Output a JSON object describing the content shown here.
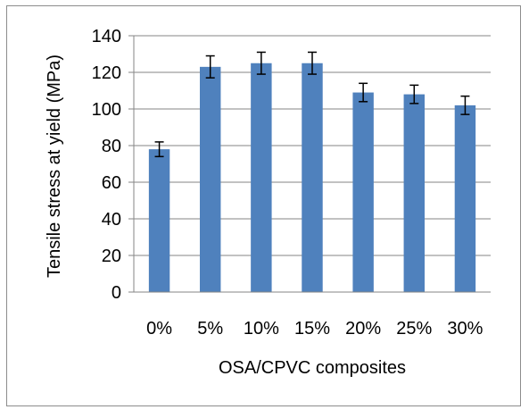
{
  "chart_data": {
    "type": "bar",
    "categories": [
      "0%",
      "5%",
      "10%",
      "15%",
      "20%",
      "25%",
      "30%"
    ],
    "values": [
      78,
      123,
      125,
      125,
      109,
      108,
      102
    ],
    "errors": [
      4,
      6,
      6,
      6,
      5,
      5,
      5
    ],
    "xlabel": "OSA/CPVC composites",
    "ylabel": "Tensile stress at yield (MPa)",
    "ylim": [
      0,
      140
    ],
    "yticks": [
      0,
      20,
      40,
      60,
      80,
      100,
      120,
      140
    ],
    "grid": true,
    "bar_color": "#4f81bd"
  }
}
